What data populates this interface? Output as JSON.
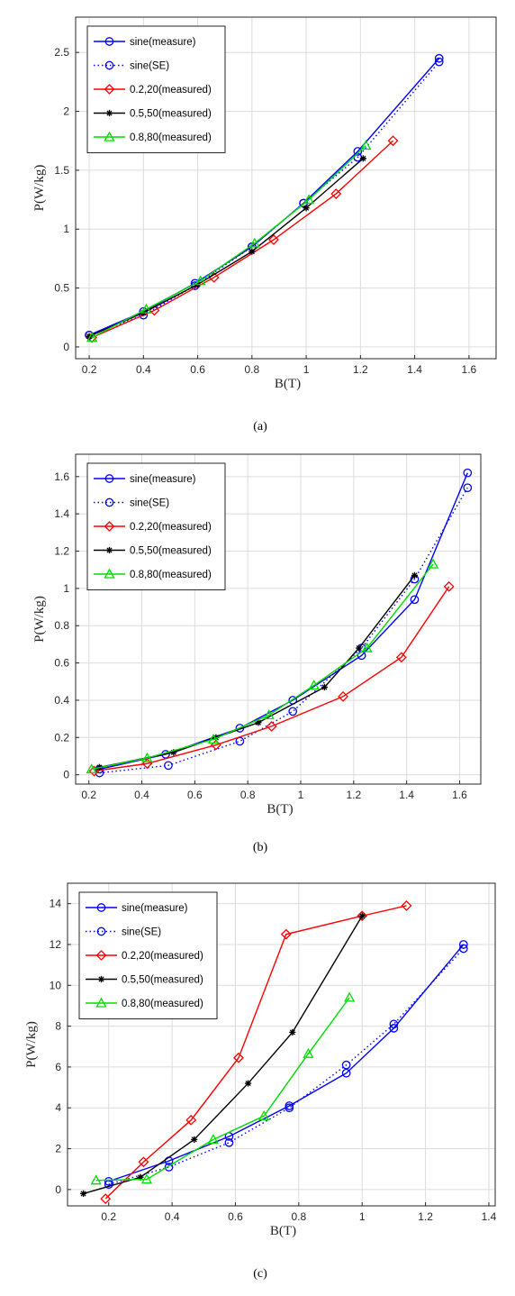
{
  "chart_data": [
    {
      "type": "line",
      "caption": "(a)",
      "xlabel": "B(T)",
      "ylabel": "P(W/kg)",
      "xlim": [
        0.15,
        1.7
      ],
      "ylim": [
        -0.1,
        2.8
      ],
      "xticks": [
        "0.2",
        "0.4",
        "0.6",
        "0.8",
        "1",
        "1.2",
        "1.4",
        "1.6"
      ],
      "yticks": [
        "0",
        "0.5",
        "1",
        "1.5",
        "2",
        "2.5"
      ],
      "grid": true,
      "legend": "top-left",
      "series": [
        {
          "name": "sine(measure)",
          "color": "#0000ff",
          "linestyle": "solid",
          "marker": "circle",
          "x": [
            0.2,
            0.4,
            0.59,
            0.8,
            0.99,
            1.19,
            1.49
          ],
          "y": [
            0.1,
            0.3,
            0.54,
            0.85,
            1.22,
            1.66,
            2.45
          ]
        },
        {
          "name": "sine(SE)",
          "color": "#0000ff",
          "linestyle": "dotted",
          "marker": "circle",
          "x": [
            0.2,
            0.4,
            0.59,
            0.8,
            0.99,
            1.19,
            1.49
          ],
          "y": [
            0.1,
            0.27,
            0.52,
            0.85,
            1.22,
            1.61,
            2.42
          ]
        },
        {
          "name": "0.2,20(measured)",
          "color": "#ff0000",
          "linestyle": "solid",
          "marker": "diamond",
          "x": [
            0.21,
            0.44,
            0.66,
            0.88,
            1.11,
            1.32
          ],
          "y": [
            0.08,
            0.31,
            0.59,
            0.91,
            1.3,
            1.75
          ]
        },
        {
          "name": "0.5,50(measured)",
          "color": "#000000",
          "linestyle": "solid",
          "marker": "asterisk",
          "x": [
            0.2,
            0.4,
            0.6,
            0.8,
            1.0,
            1.21
          ],
          "y": [
            0.09,
            0.29,
            0.53,
            0.81,
            1.18,
            1.6
          ]
        },
        {
          "name": "0.8,80(measured)",
          "color": "#00dd00",
          "linestyle": "solid",
          "marker": "triangle",
          "x": [
            0.21,
            0.41,
            0.61,
            0.81,
            1.01,
            1.22
          ],
          "y": [
            0.08,
            0.32,
            0.56,
            0.88,
            1.25,
            1.71
          ]
        }
      ]
    },
    {
      "type": "line",
      "caption": "(b)",
      "xlabel": "B(T)",
      "ylabel": "P(W/kg)",
      "xlim": [
        0.15,
        1.68
      ],
      "ylim": [
        -0.05,
        1.72
      ],
      "xticks": [
        "0.2",
        "0.4",
        "0.6",
        "0.8",
        "1",
        "1.2",
        "1.4",
        "1.6"
      ],
      "yticks": [
        "0",
        "0.2",
        "0.4",
        "0.6",
        "0.8",
        "1",
        "1.2",
        "1.4",
        "1.6"
      ],
      "grid": true,
      "legend": "top-left",
      "series": [
        {
          "name": "sine(measure)",
          "color": "#0000ff",
          "linestyle": "solid",
          "marker": "circle",
          "x": [
            0.24,
            0.49,
            0.77,
            0.97,
            1.23,
            1.43,
            1.63
          ],
          "y": [
            0.03,
            0.11,
            0.25,
            0.4,
            0.64,
            0.94,
            1.62
          ]
        },
        {
          "name": "sine(SE)",
          "color": "#0000ff",
          "linestyle": "dotted",
          "marker": "circle",
          "x": [
            0.24,
            0.5,
            0.77,
            0.97,
            1.23,
            1.43,
            1.63
          ],
          "y": [
            0.01,
            0.05,
            0.18,
            0.34,
            0.68,
            1.05,
            1.54
          ]
        },
        {
          "name": "0.2,20(measured)",
          "color": "#ff0000",
          "linestyle": "solid",
          "marker": "diamond",
          "x": [
            0.22,
            0.42,
            0.68,
            0.89,
            1.16,
            1.38,
            1.56
          ],
          "y": [
            0.02,
            0.06,
            0.16,
            0.26,
            0.42,
            0.63,
            1.01
          ]
        },
        {
          "name": "0.5,50(measured)",
          "color": "#000000",
          "linestyle": "solid",
          "marker": "asterisk",
          "x": [
            0.24,
            0.52,
            0.68,
            0.84,
            1.09,
            1.22,
            1.43
          ],
          "y": [
            0.04,
            0.12,
            0.2,
            0.28,
            0.47,
            0.68,
            1.07
          ]
        },
        {
          "name": "0.8,80(measured)",
          "color": "#00dd00",
          "linestyle": "solid",
          "marker": "triangle",
          "x": [
            0.21,
            0.42,
            0.67,
            0.88,
            1.05,
            1.25,
            1.5
          ],
          "y": [
            0.03,
            0.09,
            0.19,
            0.32,
            0.48,
            0.68,
            1.13
          ]
        }
      ]
    },
    {
      "type": "line",
      "caption": "(c)",
      "xlabel": "B(T)",
      "ylabel": "P(W/kg)",
      "xlim": [
        0.07,
        1.42
      ],
      "ylim": [
        -0.8,
        15
      ],
      "xticks": [
        "0.2",
        "0.4",
        "0.6",
        "0.8",
        "1",
        "1.2",
        "1.4"
      ],
      "yticks": [
        "0",
        "2",
        "4",
        "6",
        "8",
        "10",
        "12",
        "14"
      ],
      "grid": true,
      "legend": "top-left",
      "series": [
        {
          "name": "sine(measure)",
          "color": "#0000ff",
          "linestyle": "solid",
          "marker": "circle",
          "x": [
            0.2,
            0.39,
            0.58,
            0.77,
            0.95,
            1.1,
            1.32
          ],
          "y": [
            0.4,
            1.4,
            2.6,
            4.1,
            5.7,
            7.9,
            12.0
          ]
        },
        {
          "name": "sine(SE)",
          "color": "#0000ff",
          "linestyle": "dotted",
          "marker": "circle",
          "x": [
            0.2,
            0.39,
            0.58,
            0.77,
            0.95,
            1.1,
            1.32
          ],
          "y": [
            0.25,
            1.1,
            2.3,
            4.0,
            6.1,
            8.1,
            11.8
          ]
        },
        {
          "name": "0.2,20(measured)",
          "color": "#ff0000",
          "linestyle": "solid",
          "marker": "diamond",
          "x": [
            0.19,
            0.31,
            0.46,
            0.61,
            0.76,
            1.0,
            1.14
          ],
          "y": [
            -0.45,
            1.35,
            3.4,
            6.45,
            12.5,
            13.4,
            13.9
          ]
        },
        {
          "name": "0.5,50(measured)",
          "color": "#000000",
          "linestyle": "solid",
          "marker": "asterisk",
          "x": [
            0.12,
            0.3,
            0.47,
            0.64,
            0.78,
            1.0
          ],
          "y": [
            -0.2,
            0.6,
            2.45,
            5.2,
            7.7,
            13.4
          ]
        },
        {
          "name": "0.8,80(measured)",
          "color": "#00dd00",
          "linestyle": "solid",
          "marker": "triangle",
          "x": [
            0.16,
            0.32,
            0.53,
            0.69,
            0.83,
            0.96
          ],
          "y": [
            0.45,
            0.5,
            2.45,
            3.6,
            6.65,
            9.4
          ]
        }
      ]
    }
  ]
}
